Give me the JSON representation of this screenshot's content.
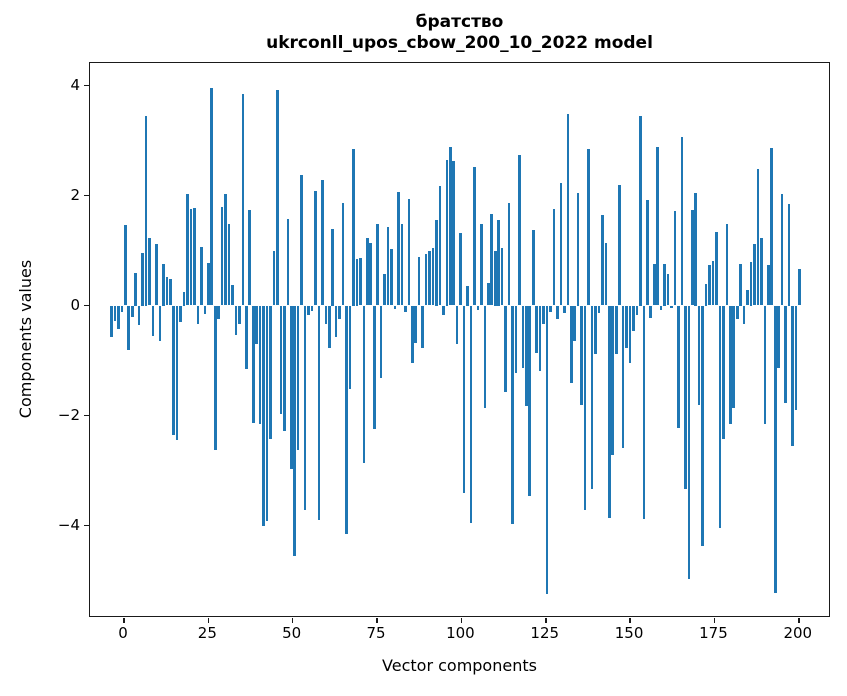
{
  "title": {
    "line1": "братство",
    "line2": "ukrconll_upos_cbow_200_10_2022 model"
  },
  "axes": {
    "xlabel": "Vector components",
    "ylabel": "Components values",
    "x_tick_labels": [
      "0",
      "25",
      "50",
      "75",
      "100",
      "125",
      "150",
      "175",
      "200"
    ],
    "y_tick_labels": [
      "4",
      "2",
      "0",
      "−2",
      "−4"
    ]
  },
  "colors": {
    "bar": "#1f77b4",
    "spine": "#1a1a1a",
    "text": "#000000",
    "background": "#ffffff"
  },
  "chart_data": {
    "type": "bar",
    "title": "братство — ukrconll_upos_cbow_200_10_2022 model",
    "xlabel": "Vector components",
    "ylabel": "Components values",
    "n_components": 200,
    "x_ticks": [
      0,
      25,
      50,
      75,
      100,
      125,
      150,
      175,
      200
    ],
    "y_ticks": [
      4,
      2,
      0,
      -2,
      -4
    ],
    "xlim": [
      -10.4,
      209.4
    ],
    "ylim": [
      -5.68,
      4.41
    ],
    "grid": false,
    "legend": null,
    "values": [
      -0.58,
      -0.28,
      -0.43,
      -0.12,
      1.47,
      -0.8,
      -0.2,
      0.6,
      -0.35,
      0.95,
      3.45,
      1.23,
      -0.55,
      1.11,
      -0.65,
      0.75,
      0.51,
      0.48,
      -2.35,
      -2.45,
      -0.3,
      0.25,
      2.02,
      1.76,
      1.78,
      -0.34,
      1.07,
      -0.15,
      0.78,
      3.96,
      -2.62,
      -0.25,
      1.79,
      2.03,
      1.49,
      0.37,
      -0.54,
      -0.34,
      3.84,
      -1.16,
      1.74,
      -2.13,
      -0.7,
      -2.16,
      -4.0,
      -3.92,
      -2.43,
      0.99,
      3.91,
      -1.98,
      -2.28,
      1.57,
      -2.98,
      -4.55,
      -2.62,
      2.37,
      -3.71,
      -0.17,
      -0.1,
      2.08,
      -3.9,
      2.28,
      -0.34,
      -0.78,
      1.4,
      -0.58,
      -0.25,
      1.87,
      -4.15,
      -1.52,
      2.85,
      0.85,
      0.87,
      -2.86,
      1.23,
      1.14,
      -2.25,
      1.48,
      -1.31,
      0.57,
      1.43,
      1.02,
      -0.07,
      2.07,
      1.48,
      -0.11,
      1.93,
      -1.04,
      -0.68,
      0.88,
      -0.78,
      0.94,
      0.99,
      1.04,
      1.55,
      2.17,
      -0.17,
      2.65,
      2.88,
      2.62,
      -0.7,
      1.31,
      -3.4,
      0.35,
      -3.96,
      2.52,
      -0.09,
      1.49,
      -1.86,
      0.41,
      1.66,
      1.0,
      1.55,
      1.04,
      -1.58,
      1.87,
      -3.98,
      -1.22,
      2.74,
      -1.13,
      -1.83,
      -3.46,
      1.37,
      -0.86,
      -1.19,
      -0.34,
      -5.24,
      -0.11,
      1.76,
      -0.25,
      2.22,
      -0.13,
      3.48,
      -1.4,
      -0.65,
      2.05,
      -1.8,
      -3.71,
      2.84,
      -3.34,
      -0.89,
      -0.13,
      1.64,
      1.14,
      -3.86,
      -2.71,
      -0.88,
      2.19,
      -2.59,
      -0.78,
      -1.04,
      -0.46,
      -0.17,
      3.45,
      -3.89,
      1.91,
      -0.22,
      0.76,
      2.88,
      -0.09,
      0.75,
      0.58,
      -0.05,
      1.72,
      -2.22,
      3.06,
      -3.34,
      -4.98,
      1.73,
      2.05,
      -1.8,
      -4.37,
      0.4,
      0.74,
      0.81,
      1.34,
      -4.04,
      -2.43,
      1.48,
      -2.16,
      -1.86,
      -0.25,
      0.75,
      -0.34,
      0.28,
      0.8,
      1.11,
      2.49,
      1.22,
      -2.16,
      0.73,
      2.86,
      -5.22,
      -1.13,
      2.03,
      -1.77,
      1.85,
      -2.55,
      -1.9,
      0.66
    ]
  }
}
